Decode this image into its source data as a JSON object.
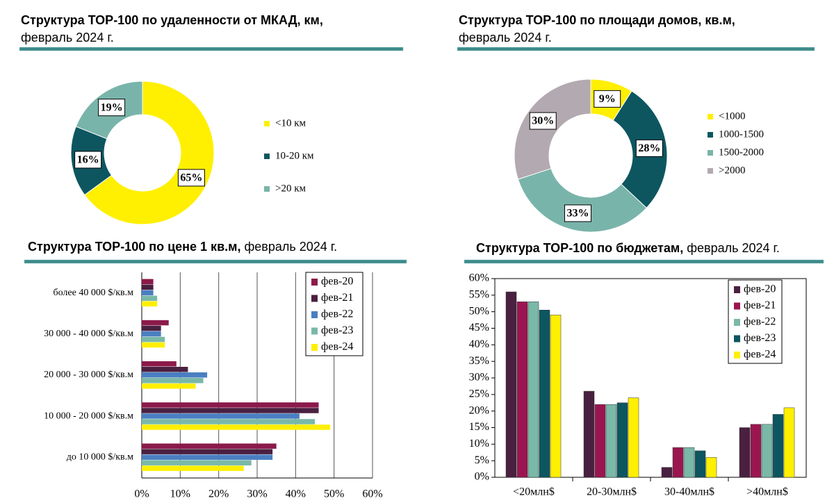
{
  "chart_data": [
    {
      "type": "pie",
      "title": "Структура ТОР-100 по удаленности от МКАД, км,",
      "subtitle": "февраль 2024 г.",
      "categories": [
        "<10 км",
        "10-20 км",
        ">20 км"
      ],
      "values": [
        65,
        16,
        19
      ],
      "value_labels": [
        "65%",
        "16%",
        "19%"
      ],
      "colors": [
        "#ffef00",
        "#0d5660",
        "#79b4aa"
      ]
    },
    {
      "type": "pie",
      "title": "Структура ТОР-100 по площади домов, кв.м,",
      "subtitle": "февраль 2024 г.",
      "categories": [
        "<1000",
        "1000-1500",
        "1500-2000",
        ">2000"
      ],
      "values": [
        9,
        28,
        33,
        30
      ],
      "value_labels": [
        "9%",
        "28%",
        "33%",
        "30%"
      ],
      "colors": [
        "#ffef00",
        "#0d5660",
        "#79b4aa",
        "#b3a9b0"
      ]
    },
    {
      "type": "hbar",
      "title": "Структура ТОР-100 по цене 1 кв.м,",
      "subtitle": "февраль 2024 г.",
      "categories": [
        "более 40 000 $/кв.м",
        "30 000 - 40 000 $/кв.м",
        "20 000 - 30 000 $/кв.м",
        "10 000 - 20 000 $/кв.м",
        "до 10 000 $/кв.м"
      ],
      "series": [
        {
          "name": "фев-20",
          "color": "#8b1a4a",
          "values": [
            3,
            7,
            9,
            46,
            35
          ]
        },
        {
          "name": "фев-21",
          "color": "#4a2040",
          "values": [
            3,
            5,
            12,
            46,
            34
          ]
        },
        {
          "name": "фев-22",
          "color": "#4a7fc1",
          "values": [
            3,
            5,
            17,
            41,
            34
          ]
        },
        {
          "name": "фев-23",
          "color": "#7ab8a8",
          "values": [
            4,
            6,
            16,
            45,
            28.5
          ]
        },
        {
          "name": "фев-24",
          "color": "#ffef00",
          "values": [
            4,
            6,
            14,
            49,
            26.5
          ]
        }
      ],
      "xlim": [
        0,
        60
      ],
      "xticks": [
        {
          "value": 0,
          "label": "0%"
        },
        {
          "value": 10,
          "label": "10%"
        },
        {
          "value": 20,
          "label": "20%"
        },
        {
          "value": 30,
          "label": "30%"
        },
        {
          "value": 40,
          "label": "40%"
        },
        {
          "value": 50,
          "label": "50%"
        },
        {
          "value": 60,
          "label": "60%"
        }
      ],
      "grid": true
    },
    {
      "type": "bar",
      "title": "Структура ТОР-100 по бюджетам,",
      "subtitle": "февраль 2024 г.",
      "categories": [
        "<20млн$",
        "20-30млн$",
        "30-40млн$",
        ">40млн$"
      ],
      "series": [
        {
          "name": "фев-20",
          "color": "#4a2040",
          "values": [
            56,
            26,
            3,
            15
          ]
        },
        {
          "name": "фев-21",
          "color": "#9b1650",
          "values": [
            53,
            22,
            9,
            16
          ]
        },
        {
          "name": "фев-22",
          "color": "#7ab8a8",
          "values": [
            53,
            22,
            9,
            16
          ]
        },
        {
          "name": "фев-23",
          "color": "#0d5660",
          "values": [
            50.5,
            22.5,
            8,
            19
          ]
        },
        {
          "name": "фев-24",
          "color": "#ffef00",
          "values": [
            49,
            24,
            6,
            21
          ]
        }
      ],
      "ylim": [
        0,
        60
      ],
      "yticks": [
        {
          "value": 0,
          "label": "0%"
        },
        {
          "value": 5,
          "label": "5%"
        },
        {
          "value": 10,
          "label": "10%"
        },
        {
          "value": 15,
          "label": "15%"
        },
        {
          "value": 20,
          "label": "20%"
        },
        {
          "value": 25,
          "label": "25%"
        },
        {
          "value": 30,
          "label": "30%"
        },
        {
          "value": 35,
          "label": "35%"
        },
        {
          "value": 40,
          "label": "40%"
        },
        {
          "value": 45,
          "label": "45%"
        },
        {
          "value": 50,
          "label": "50%"
        },
        {
          "value": 55,
          "label": "55%"
        },
        {
          "value": 60,
          "label": "60%"
        }
      ],
      "grid": false
    }
  ]
}
